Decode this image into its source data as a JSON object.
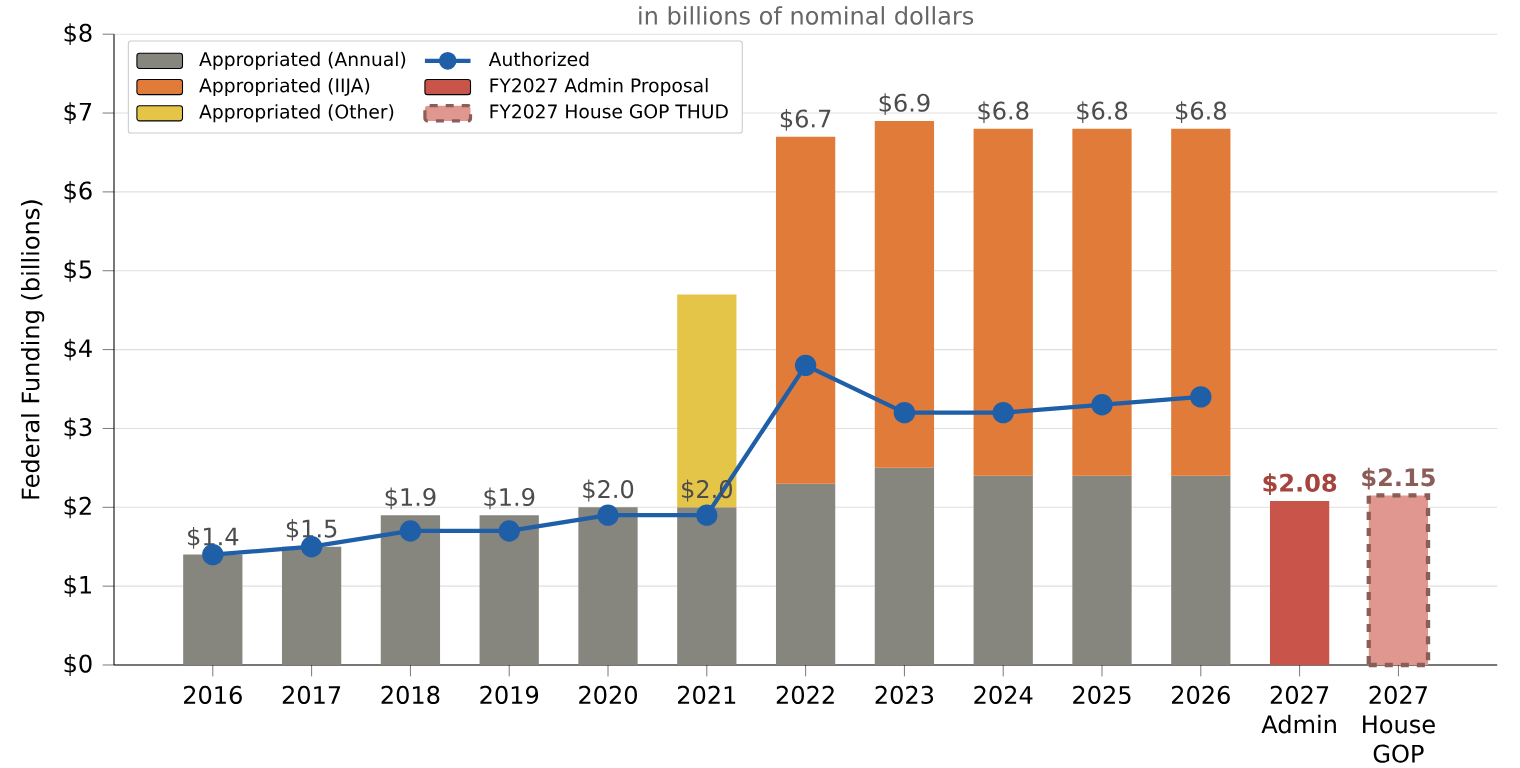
{
  "chart_data": {
    "type": "bar",
    "stacked": true,
    "subtitle": "in billions of nominal dollars",
    "ylabel": "Federal Funding (billions)",
    "categories": [
      "2016",
      "2017",
      "2018",
      "2019",
      "2020",
      "2021",
      "2022",
      "2023",
      "2024",
      "2025",
      "2026",
      "2027 Admin",
      "2027 House GOP"
    ],
    "series": [
      {
        "name": "Appropriated (Annual)",
        "color": "#86867e",
        "values": [
          1.4,
          1.5,
          1.9,
          1.9,
          2.0,
          2.0,
          2.3,
          2.5,
          2.4,
          2.4,
          2.4,
          null,
          null
        ],
        "value_labels": [
          "$1.4",
          "$1.5",
          "$1.9",
          "$1.9",
          "$2.0",
          "$2.0",
          null,
          null,
          null,
          null,
          null,
          null,
          null
        ]
      },
      {
        "name": "Appropriated (IIJA)",
        "color": "#e07b39",
        "values": [
          null,
          null,
          null,
          null,
          null,
          null,
          4.4,
          4.4,
          4.4,
          4.4,
          4.4,
          null,
          null
        ]
      },
      {
        "name": "Appropriated (Other)",
        "color": "#e5c548",
        "values": [
          null,
          null,
          null,
          null,
          null,
          2.7,
          null,
          null,
          null,
          null,
          null,
          null,
          null
        ]
      },
      {
        "name": "FY2027 Admin Proposal",
        "color": "#c9544a",
        "values": [
          null,
          null,
          null,
          null,
          null,
          null,
          null,
          null,
          null,
          null,
          null,
          2.08,
          null
        ],
        "value_labels": [
          null,
          null,
          null,
          null,
          null,
          null,
          null,
          null,
          null,
          null,
          null,
          "$2.08",
          null
        ]
      },
      {
        "name": "FY2027 House GOP THUD",
        "color": "#e0978f",
        "line_style": "dashed",
        "values": [
          null,
          null,
          null,
          null,
          null,
          null,
          null,
          null,
          null,
          null,
          null,
          null,
          2.15
        ],
        "value_labels": [
          null,
          null,
          null,
          null,
          null,
          null,
          null,
          null,
          null,
          null,
          null,
          null,
          "$2.15"
        ]
      },
      {
        "name": "Authorized",
        "type": "line",
        "color": "#1f5fa8",
        "marker": "circle",
        "values": [
          1.4,
          1.5,
          1.7,
          1.7,
          1.9,
          1.9,
          3.8,
          3.2,
          3.2,
          3.3,
          3.4,
          null,
          null
        ]
      }
    ],
    "totals": [
      null,
      null,
      null,
      null,
      null,
      null,
      "$6.7",
      "$6.9",
      "$6.8",
      "$6.8",
      "$6.8",
      null,
      null
    ],
    "ylim": [
      0,
      8
    ],
    "yticks": [
      {
        "value": 0,
        "label": "$0"
      },
      {
        "value": 1,
        "label": "$1"
      },
      {
        "value": 2,
        "label": "$2"
      },
      {
        "value": 3,
        "label": "$3"
      },
      {
        "value": 4,
        "label": "$4"
      },
      {
        "value": 5,
        "label": "$5"
      },
      {
        "value": 6,
        "label": "$6"
      },
      {
        "value": 7,
        "label": "$7"
      },
      {
        "value": 8,
        "label": "$8"
      }
    ],
    "grid": "y",
    "legend": "top left"
  }
}
